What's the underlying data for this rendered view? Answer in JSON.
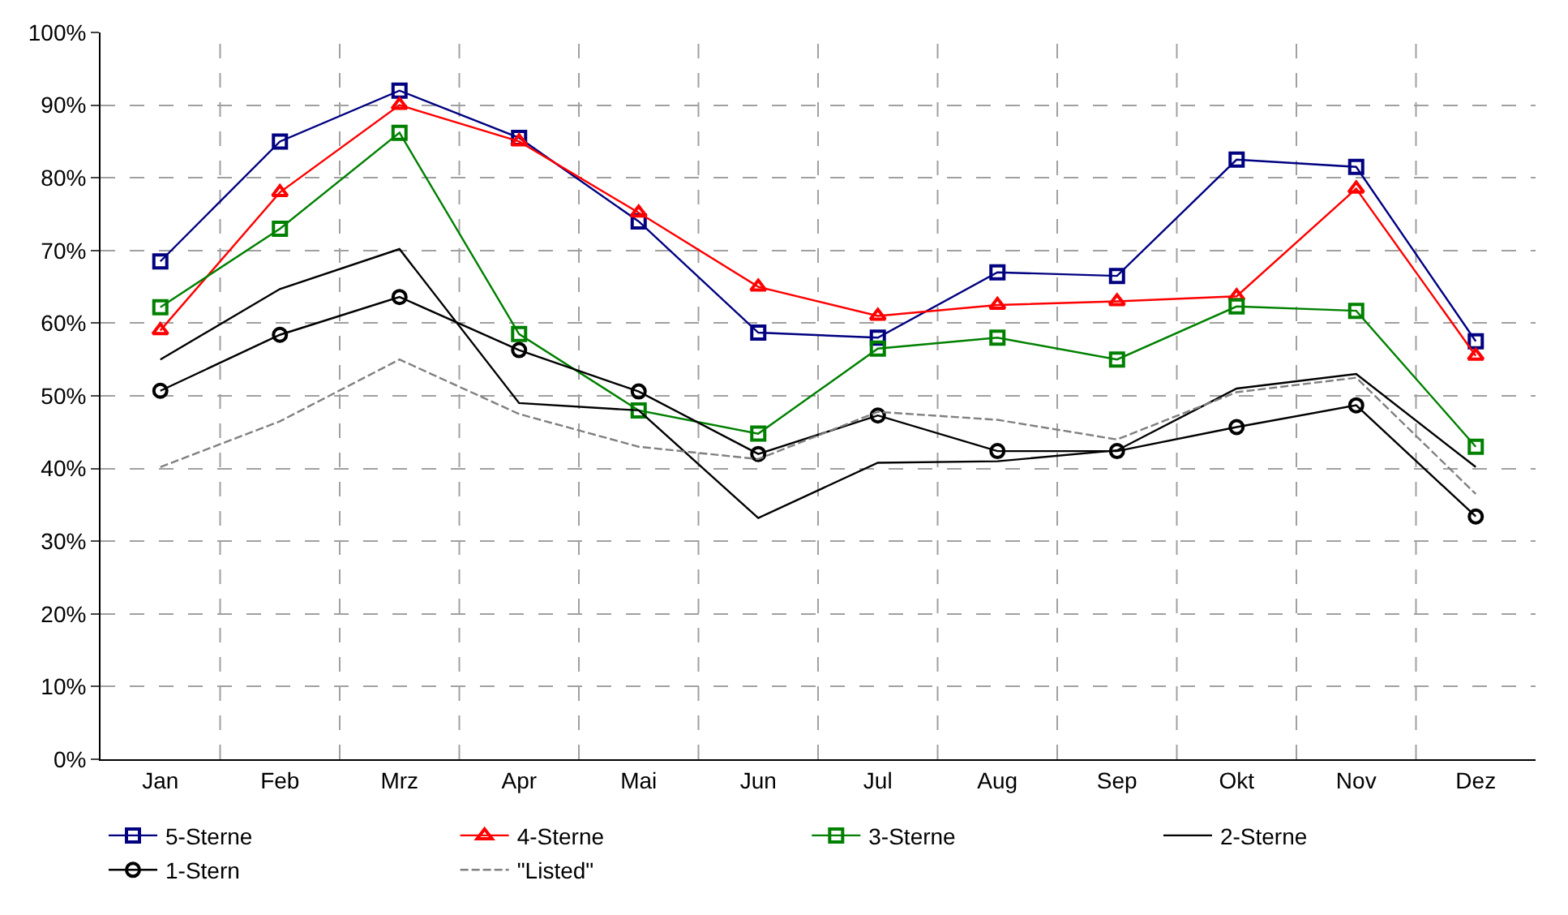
{
  "chart_data": {
    "type": "line",
    "categories": [
      "Jan",
      "Feb",
      "Mrz",
      "Apr",
      "Mai",
      "Jun",
      "Jul",
      "Aug",
      "Sep",
      "Okt",
      "Nov",
      "Dez"
    ],
    "ylim": [
      0,
      1
    ],
    "yticks": [
      {
        "value": 0,
        "label": "0%"
      },
      {
        "value": 0.1,
        "label": "10%"
      },
      {
        "value": 0.2,
        "label": "20%"
      },
      {
        "value": 0.3,
        "label": "30%"
      },
      {
        "value": 0.4,
        "label": "40%"
      },
      {
        "value": 0.5,
        "label": "50%"
      },
      {
        "value": 0.6,
        "label": "60%"
      },
      {
        "value": 0.7,
        "label": "70%"
      },
      {
        "value": 0.8,
        "label": "80%"
      },
      {
        "value": 0.9,
        "label": "90%"
      },
      {
        "value": 1,
        "label": "100%"
      }
    ],
    "grid": true,
    "legend": "bottom",
    "series": [
      {
        "name": "5-Sterne",
        "color": "#000080",
        "marker": "square",
        "line_style": "solid",
        "values": [
          0.685,
          0.85,
          0.92,
          0.855,
          0.74,
          0.587,
          0.58,
          0.67,
          0.665,
          0.825,
          0.815,
          0.575
        ]
      },
      {
        "name": "4-Sterne",
        "color": "#ff0000",
        "marker": "triangle",
        "line_style": "solid",
        "values": [
          0.59,
          0.78,
          0.9,
          0.85,
          0.752,
          0.65,
          0.61,
          0.625,
          0.63,
          0.637,
          0.785,
          0.555
        ]
      },
      {
        "name": "3-Sterne",
        "color": "#008000",
        "marker": "square",
        "line_style": "solid",
        "values": [
          0.622,
          0.73,
          0.862,
          0.585,
          0.48,
          0.448,
          0.565,
          0.58,
          0.55,
          0.623,
          0.617,
          0.43
        ]
      },
      {
        "name": "2-Sterne",
        "color": "#000000",
        "marker": "none",
        "line_style": "solid",
        "values": [
          0.55,
          0.647,
          0.702,
          0.49,
          0.48,
          0.332,
          0.408,
          0.41,
          0.425,
          0.51,
          0.53,
          0.402
        ]
      },
      {
        "name": "1-Stern",
        "color": "#000000",
        "marker": "circle",
        "line_style": "solid",
        "values": [
          0.507,
          0.584,
          0.636,
          0.563,
          0.506,
          0.42,
          0.473,
          0.424,
          0.424,
          0.457,
          0.487,
          0.334
        ]
      },
      {
        "name": "\"Listed\"",
        "color": "#808080",
        "marker": "none",
        "line_style": "dashed",
        "values": [
          0.402,
          0.465,
          0.55,
          0.475,
          0.43,
          0.413,
          0.478,
          0.467,
          0.44,
          0.505,
          0.525,
          0.365
        ]
      }
    ]
  }
}
